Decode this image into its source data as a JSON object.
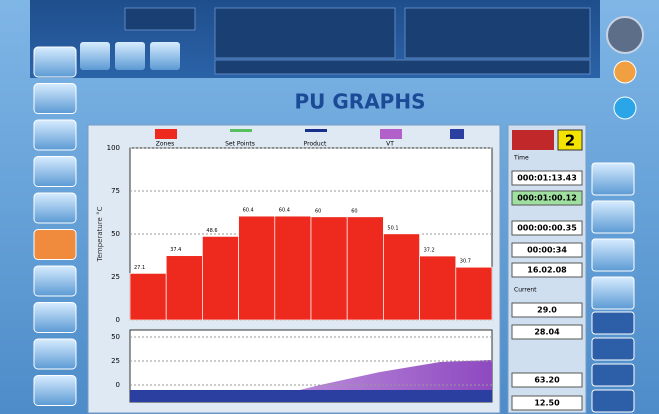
{
  "title": "PU GRAPHS",
  "chart": {
    "legend": [
      "Zones",
      "Set Points",
      "Product",
      "VT"
    ],
    "y_label": "Temperature °C",
    "ylim": [
      0,
      100
    ],
    "yticks": [
      100,
      75,
      50,
      25,
      0
    ],
    "lower_ylim": [
      0,
      50
    ],
    "lower_yticks": [
      50,
      25,
      0
    ],
    "zones": {
      "values": [
        27.1,
        37.4,
        48.6,
        60.4,
        60.4,
        60.0,
        60.0,
        50.1,
        37.2,
        30.7
      ],
      "color": "#ee2a1e"
    }
  },
  "panel": {
    "counter": "2",
    "time_label": "Time",
    "times": [
      "000:01:13.43",
      "000:01:00.12",
      "000:00:00.35",
      "00:00:34",
      "16.02.08"
    ],
    "current_label": "Current",
    "readings": [
      "29.0",
      "28.04",
      "63.20",
      "12.50"
    ]
  }
}
